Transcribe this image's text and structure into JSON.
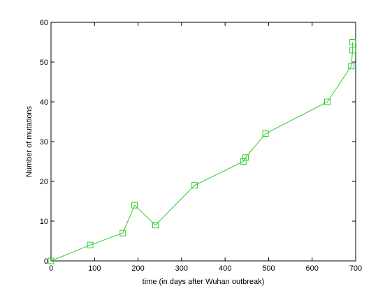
{
  "chart_data": {
    "type": "line",
    "title": "",
    "xlabel": "time (in days after Wuhan outbreak)",
    "ylabel": "Number of mutations",
    "xlim": [
      0,
      700
    ],
    "ylim": [
      0,
      60
    ],
    "xticks": [
      0,
      100,
      200,
      300,
      400,
      500,
      600,
      700
    ],
    "yticks": [
      0,
      10,
      20,
      30,
      40,
      50,
      60
    ],
    "grid": false,
    "legend": "none",
    "series": [
      {
        "color": "#2ecc2e",
        "marker": "square",
        "x": [
          0,
          90,
          165,
          192,
          240,
          330,
          442,
          447,
          493,
          635,
          690,
          693,
          693
        ],
        "y": [
          0,
          4,
          7,
          14,
          9,
          19,
          25,
          26,
          32,
          40,
          49,
          53,
          55
        ]
      }
    ]
  }
}
